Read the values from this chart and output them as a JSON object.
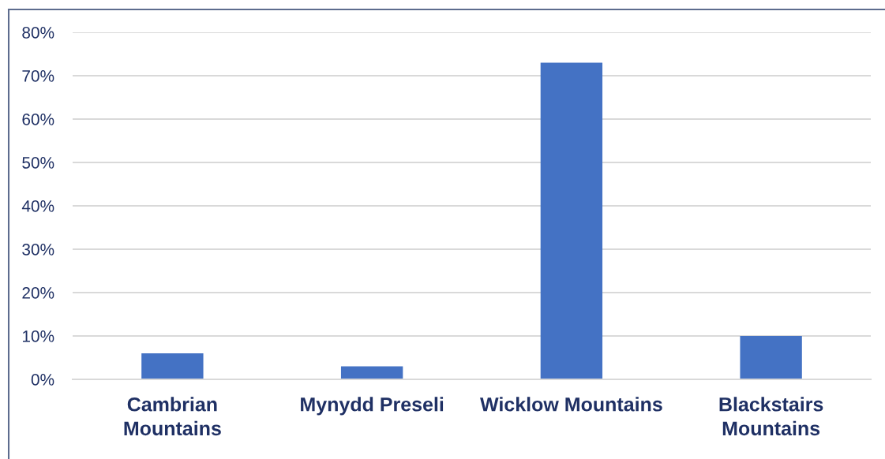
{
  "chart_data": {
    "type": "bar",
    "categories": [
      "Cambrian Mountains",
      "Mynydd Preseli",
      "Wicklow Mountains",
      "Blackstairs Mountains"
    ],
    "values": [
      6,
      3,
      73,
      10
    ],
    "color": "#4472c4",
    "ylim": [
      0,
      80
    ],
    "yticks": [
      {
        "value": 0,
        "label": "0%"
      },
      {
        "value": 10,
        "label": "10%"
      },
      {
        "value": 20,
        "label": "20%"
      },
      {
        "value": 30,
        "label": "30%"
      },
      {
        "value": 40,
        "label": "40%"
      },
      {
        "value": 50,
        "label": "50%"
      },
      {
        "value": 60,
        "label": "60%"
      },
      {
        "value": 70,
        "label": "70%"
      },
      {
        "value": 80,
        "label": "80%"
      }
    ],
    "grid": "y"
  }
}
